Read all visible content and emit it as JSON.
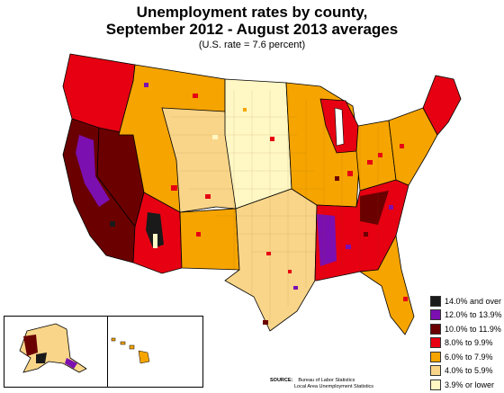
{
  "map": {
    "title_line1": "Unemployment rates by county,",
    "title_line2": "September 2012 - August 2013 averages",
    "subtitle": "(U.S. rate = 7.6 percent)",
    "legend": [
      {
        "label": "14.0% and over",
        "color": "#1a1a1a"
      },
      {
        "label": "12.0% to 13.9%",
        "color": "#7b0fb0"
      },
      {
        "label": "10.0% to 11.9%",
        "color": "#6b0000"
      },
      {
        "label": "8.0% to 9.9%",
        "color": "#e60012"
      },
      {
        "label": "6.0% to 7.9%",
        "color": "#f5a400"
      },
      {
        "label": "4.0% to 5.9%",
        "color": "#f9d589"
      },
      {
        "label": "3.9% or lower",
        "color": "#fff7c4"
      }
    ],
    "source_label": "SOURCE:",
    "source_line1": "Bureau of Labor Statistics",
    "source_line2": "Local Area Unemployment Statistics",
    "regions": [
      {
        "name": "pacific-northwest",
        "class": "8.0% to 9.9%"
      },
      {
        "name": "california-coast",
        "class": "10.0% to 11.9%"
      },
      {
        "name": "central-valley",
        "class": "12.0% to 13.9%"
      },
      {
        "name": "nevada",
        "class": "10.0% to 11.9%"
      },
      {
        "name": "arizona-core",
        "class": "14.0% and over"
      },
      {
        "name": "mountain-west",
        "class": "6.0% to 7.9%"
      },
      {
        "name": "colorado-wyoming",
        "class": "4.0% to 5.9%"
      },
      {
        "name": "great-plains",
        "class": "3.9% or lower"
      },
      {
        "name": "texas-oklahoma",
        "class": "4.0% to 5.9%"
      },
      {
        "name": "midwest",
        "class": "6.0% to 7.9%"
      },
      {
        "name": "michigan",
        "class": "8.0% to 9.9%"
      },
      {
        "name": "southeast",
        "class": "8.0% to 9.9%"
      },
      {
        "name": "mississippi-delta",
        "class": "12.0% to 13.9%"
      },
      {
        "name": "northeast",
        "class": "6.0% to 7.9%"
      },
      {
        "name": "florida",
        "class": "6.0% to 7.9%"
      },
      {
        "name": "new-england",
        "class": "8.0% to 9.9%"
      }
    ]
  }
}
